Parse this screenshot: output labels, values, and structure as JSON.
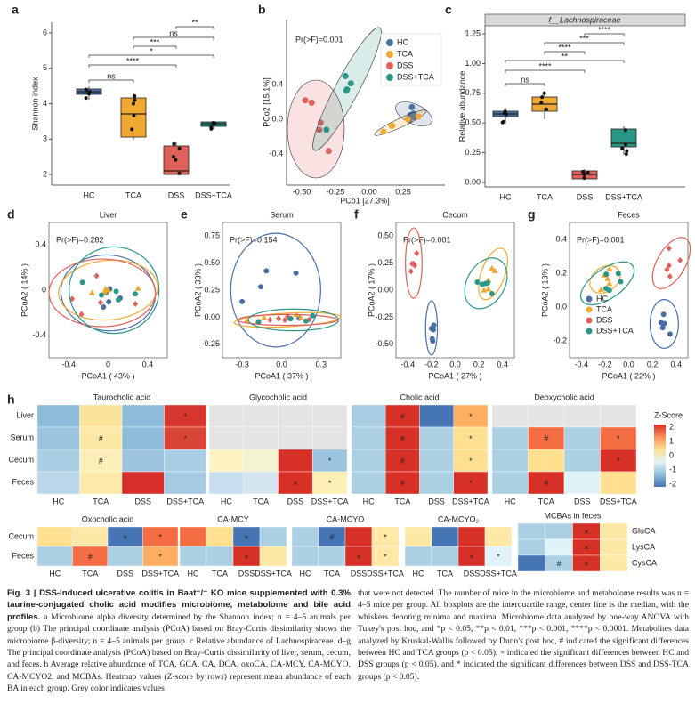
{
  "panels": {
    "a": {
      "label": "a",
      "ylabel": "Shannon index",
      "yticks": [
        "6",
        "5",
        "4",
        "3",
        "2"
      ],
      "categories": [
        "HC",
        "TCA",
        "DSS",
        "DSS+TCA"
      ],
      "sig": [
        "**",
        "ns",
        "***",
        "*",
        "****",
        "ns"
      ]
    },
    "b": {
      "label": "b",
      "annotation": "Pr(>F)=0.001",
      "xlabel": "PCo1 [27.3%]",
      "ylabel": "PCo2 [15.1%]",
      "xticks": [
        "-0.50",
        "-0.25",
        "0.00",
        "0.25"
      ],
      "yticks": [
        "0.4",
        "0.0",
        "-0.4"
      ],
      "legend": [
        "HC",
        "TCA",
        "DSS",
        "DSS+TCA"
      ]
    },
    "c": {
      "label": "c",
      "strip": "f__Lachnospiraceae",
      "ylabel": "Relative abundance",
      "yticks": [
        "1.25",
        "1.00",
        "0.75",
        "0.50",
        "0.25",
        "0.00"
      ],
      "categories": [
        "HC",
        "TCA",
        "DSS",
        "DSS+TCA"
      ],
      "sig": [
        "****",
        "***",
        "****",
        "**",
        "****",
        "ns"
      ]
    },
    "d": {
      "label": "d",
      "title": "Liver",
      "annotation": "Pr(>F)=0.282",
      "xlabel": "PCoA1 ( 43% )",
      "ylabel": "PCoA2 ( 14% )",
      "xticks": [
        "-0.4",
        "0",
        "0.4"
      ],
      "yticks": [
        "0.4",
        "0",
        "-0.4"
      ]
    },
    "e": {
      "label": "e",
      "title": "Serum",
      "annotation": "Pr(>F)=0.154",
      "xlabel": "PCoA1 ( 37% )",
      "ylabel": "PCoA2 ( 33% )",
      "xticks": [
        "-0.3",
        "0.0",
        "0.3"
      ],
      "yticks": [
        "0.75",
        "0.50",
        "0.25",
        "0.00",
        "-0.25"
      ]
    },
    "f": {
      "label": "f",
      "title": "Cecum",
      "annotation": "Pr(>F)=0.001",
      "xlabel": "PCoA1 ( 27% )",
      "ylabel": "PCoA2 ( 17% )",
      "xticks": [
        "-0.4",
        "-0.2",
        "0.0",
        "0.2",
        "0.4"
      ],
      "yticks": [
        "0.50",
        "0.25",
        "0.00",
        "-0.25",
        "-0.50"
      ]
    },
    "g": {
      "label": "g",
      "title": "Feces",
      "annotation": "Pr(>F)=0.001",
      "xlabel": "PCoA1 ( 22% )",
      "ylabel": "PCoA2 ( 13% )",
      "xticks": [
        "-0.4",
        "-0.2",
        "0.0",
        "0.2",
        "0.4"
      ],
      "yticks": [
        "0.4",
        "0.2",
        "0.0",
        "-0.2"
      ],
      "legend": [
        "HC",
        "TCA",
        "DSS",
        "DSS+TCA"
      ]
    }
  },
  "heatmap": {
    "label": "h",
    "legend_title": "Z-Score",
    "legend_ticks": [
      "2",
      "1",
      "0",
      "-1",
      "-2"
    ],
    "columns": [
      "HC",
      "TCA",
      "DSS",
      "DSS+TCA"
    ],
    "top": {
      "rows": [
        "Liver",
        "Serum",
        "Cecum",
        "Feces"
      ],
      "blocks": [
        {
          "title": "Taurocholic acid",
          "colors": [
            [
              "#8dbbd9",
              "#fbe39a",
              "#8fbcd9",
              "#d6372d"
            ],
            [
              "#9cc4de",
              "#fde8a5",
              "#8fbcd9",
              "#d94535"
            ],
            [
              "#a9cde3",
              "#fcf0b8",
              "#9cc4de",
              "#a9cde3"
            ],
            [
              "#b9d7e8",
              "#fde9a8",
              "#d7302a",
              "#a6cae2"
            ]
          ],
          "symbols": [
            [
              null,
              null,
              null,
              "*"
            ],
            [
              null,
              "#",
              null,
              "*"
            ],
            [
              null,
              "#",
              null,
              null
            ],
            [
              null,
              null,
              null,
              null
            ]
          ]
        },
        {
          "title": "Glycocholic acid",
          "colors": [
            [
              "#e4e4e4",
              "#e4e4e4",
              "#e4e4e4",
              "#e4e4e4"
            ],
            [
              "#e4e4e4",
              "#e4e4e4",
              "#e4e4e4",
              "#e4e4e4"
            ],
            [
              "#fef3c0",
              "#f3f3d2",
              "#d73027",
              "#9cc4de"
            ],
            [
              "#c6dfee",
              "#d5e6ee",
              "#d73027",
              "#fdf0b5"
            ]
          ],
          "symbols": [
            [
              null,
              null,
              null,
              null
            ],
            [
              null,
              null,
              null,
              null
            ],
            [
              null,
              null,
              null,
              "*"
            ],
            [
              null,
              null,
              "×",
              "*"
            ]
          ]
        },
        {
          "title": "Cholic acid",
          "colors": [
            [
              "#a8cce2",
              "#d73027",
              "#4575b4",
              "#fdae61"
            ],
            [
              "#abd0e4",
              "#d73027",
              "#abd0e4",
              "#fee090"
            ],
            [
              "#abd0e4",
              "#d73027",
              "#abd0e4",
              "#fee090"
            ],
            [
              "#abd0e4",
              "#d73027",
              "#abd0e4",
              "#d73027"
            ]
          ],
          "symbols": [
            [
              null,
              "#",
              null,
              "*"
            ],
            [
              null,
              "#",
              null,
              "*"
            ],
            [
              null,
              "#",
              null,
              "*"
            ],
            [
              null,
              "#",
              null,
              "*"
            ]
          ]
        },
        {
          "title": "Deoxycholic acid",
          "colors": [
            [
              "#e4e4e4",
              "#e4e4e4",
              "#e4e4e4",
              "#e4e4e4"
            ],
            [
              "#abd0e4",
              "#f46d43",
              "#abd0e4",
              "#f46d43"
            ],
            [
              "#abd0e4",
              "#fee090",
              "#abd0e4",
              "#d73027"
            ],
            [
              "#abd0e4",
              "#d73027",
              "#e0f3f8",
              "#fee090"
            ]
          ],
          "symbols": [
            [
              null,
              null,
              null,
              null
            ],
            [
              null,
              "#",
              null,
              "*"
            ],
            [
              null,
              null,
              null,
              "*"
            ],
            [
              null,
              "#",
              null,
              null
            ]
          ]
        }
      ]
    },
    "bottom": {
      "rows": [
        "Cecum",
        "Feces"
      ],
      "blocks": [
        {
          "title": "Oxocholic acid",
          "colors": [
            [
              "#fee090",
              "#fee8a5",
              "#4575b4",
              "#f46d43"
            ],
            [
              "#abd0e4",
              "#f46d43",
              "#abd0e4",
              "#fdae61"
            ]
          ],
          "symbols": [
            [
              null,
              null,
              "×",
              "*"
            ],
            [
              null,
              "#",
              null,
              "*"
            ]
          ]
        },
        {
          "title": "CA-MCY",
          "colors": [
            [
              "#f46d43",
              "#fee090",
              "#4575b4",
              "#abd0e4"
            ],
            [
              "#abd0e4",
              "#abd0e4",
              "#d73027",
              "#fee8a5"
            ]
          ],
          "symbols": [
            [
              null,
              null,
              "×",
              null
            ],
            [
              null,
              null,
              "×",
              null
            ]
          ]
        },
        {
          "title": "CA-MCYO",
          "colors": [
            [
              "#abd0e4",
              "#4575b4",
              "#d73027",
              "#fee8a5"
            ],
            [
              "#abd0e4",
              "#abd0e4",
              "#d73027",
              "#fee8a5"
            ]
          ],
          "symbols": [
            [
              null,
              "#",
              null,
              "*"
            ],
            [
              null,
              null,
              "×",
              "*"
            ]
          ]
        },
        {
          "title": "CA-MCYO₂",
          "colors": [
            [
              "#fee8a5",
              "#4575b4",
              "#d73027",
              "#fee8a5"
            ],
            [
              "#abd0e4",
              "#abd0e4",
              "#d73027",
              "#e0f3f8"
            ]
          ],
          "symbols": [
            [
              null,
              null,
              null,
              null
            ],
            [
              null,
              null,
              "×",
              "*"
            ]
          ]
        }
      ]
    },
    "mcba": {
      "title": "MCBAs in feces",
      "rows": [
        "GluCA",
        "LysCA",
        "CysCA"
      ],
      "colors": [
        [
          "#abd0e4",
          "#abd0e4",
          "#d73027",
          "#fee8a5"
        ],
        [
          "#abd0e4",
          "#e0f3f8",
          "#d73027",
          "#fee8a5"
        ],
        [
          "#4575b4",
          "#abd0e4",
          "#d73027",
          "#fee8a5"
        ]
      ],
      "symbols": [
        [
          null,
          null,
          "×",
          null
        ],
        [
          null,
          null,
          "×",
          null
        ],
        [
          null,
          "#",
          "×",
          null
        ]
      ]
    }
  },
  "caption": {
    "title": "Fig. 3 | DSS-induced ulcerative colitis in Baat⁻/⁻ KO mice supplemented with 0.3% taurine-conjugated cholic acid modifies microbiome, metabolome and bile acid profiles.",
    "left": "a Microbiome alpha diversity determined by the Shannon index; n = 4–5 animals per group (b) The principal coordinate analysis (PCoA) based on Bray-Curtis dissimilarity shows the microbiome β-diversity; n = 4–5 animals per group. c Relative abundance of Lachnospiraceae. d–g The principal coordinate analysis (PCoA) based on Bray-Curtis dissimilarity of liver, serum, cecum, and feces. h Average relative abundance of TCA, GCA, CA, DCA, oxoCA, CA-MCY, CA-MCYO, CA-MCYO2, and MCBAs. Heatmap values (Z-score by rows) represent mean abundance of each BA in each group. Grey color indicates values",
    "right": "that were not detected. The number of mice in the microbiome and metabolome results was n = 4–5 mice per group. All boxplots are the interquartile range, center line is the median, with the whiskers denoting minima and maxima. Microbiome data analyzed by one-way ANOVA with Tukey's post hoc, and *p < 0.05, **p < 0.01, ***p < 0.001, ****p < 0.0001. Metabolites data analyzed by Kruskal-Wallis followed by Dunn's post hoc, # indicated the significant differences between HC and TCA groups (p < 0.05), × indicated the significant differences between HC and DSS groups (p < 0.05), and * indicated the significant differences between DSS and DSS-TCA groups (p < 0.05)."
  }
}
